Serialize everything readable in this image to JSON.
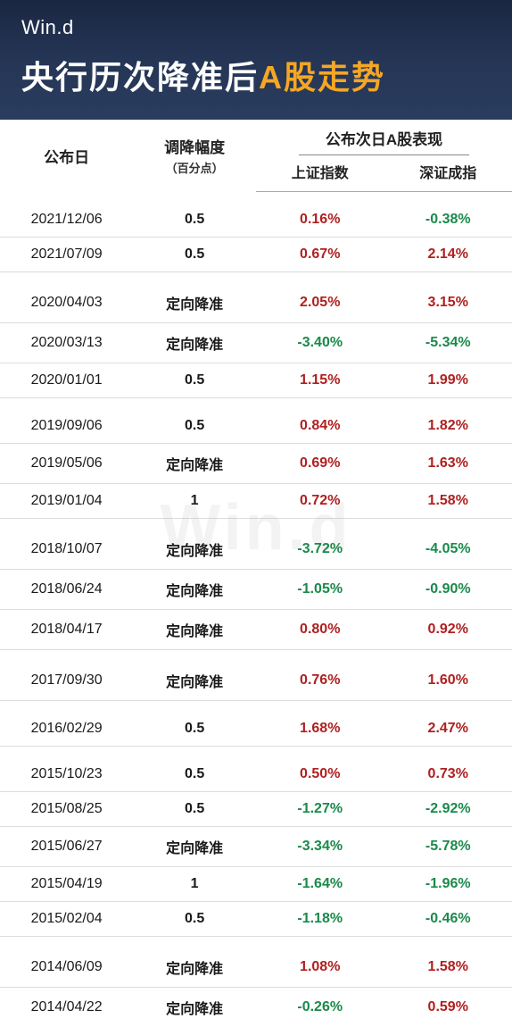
{
  "brand": "Win.d",
  "title_pre": "央行历次降准后",
  "title_accent": "A股走势",
  "watermark": "Win.d",
  "columns": {
    "date": "公布日",
    "amplitude_main": "调降幅度",
    "amplitude_sub": "（百分点）",
    "perf_group": "公布次日A股表现",
    "sh": "上证指数",
    "sz": "深证成指"
  },
  "colors": {
    "header_bg": "#1a2742",
    "accent": "#f5a623",
    "positive": "#b02020",
    "negative": "#1a8a4a",
    "body_bg": "#f5f0e8"
  },
  "rows": [
    {
      "date": "2021/12/06",
      "amp": "0.5",
      "sh": "0.16%",
      "sh_sign": 1,
      "sz": "-0.38%",
      "sz_sign": -1,
      "group_start": true
    },
    {
      "date": "2021/07/09",
      "amp": "0.5",
      "sh": "0.67%",
      "sh_sign": 1,
      "sz": "2.14%",
      "sz_sign": 1
    },
    {
      "date": "2020/04/03",
      "amp": "定向降准",
      "sh": "2.05%",
      "sh_sign": 1,
      "sz": "3.15%",
      "sz_sign": 1,
      "group_start": true
    },
    {
      "date": "2020/03/13",
      "amp": "定向降准",
      "sh": "-3.40%",
      "sh_sign": -1,
      "sz": "-5.34%",
      "sz_sign": -1
    },
    {
      "date": "2020/01/01",
      "amp": "0.5",
      "sh": "1.15%",
      "sh_sign": 1,
      "sz": "1.99%",
      "sz_sign": 1
    },
    {
      "date": "2019/09/06",
      "amp": "0.5",
      "sh": "0.84%",
      "sh_sign": 1,
      "sz": "1.82%",
      "sz_sign": 1,
      "group_start": true
    },
    {
      "date": "2019/05/06",
      "amp": "定向降准",
      "sh": "0.69%",
      "sh_sign": 1,
      "sz": "1.63%",
      "sz_sign": 1
    },
    {
      "date": "2019/01/04",
      "amp": "1",
      "sh": "0.72%",
      "sh_sign": 1,
      "sz": "1.58%",
      "sz_sign": 1
    },
    {
      "date": "2018/10/07",
      "amp": "定向降准",
      "sh": "-3.72%",
      "sh_sign": -1,
      "sz": "-4.05%",
      "sz_sign": -1,
      "group_start": true
    },
    {
      "date": "2018/06/24",
      "amp": "定向降准",
      "sh": "-1.05%",
      "sh_sign": -1,
      "sz": "-0.90%",
      "sz_sign": -1
    },
    {
      "date": "2018/04/17",
      "amp": "定向降准",
      "sh": "0.80%",
      "sh_sign": 1,
      "sz": "0.92%",
      "sz_sign": 1
    },
    {
      "date": "2017/09/30",
      "amp": "定向降准",
      "sh": "0.76%",
      "sh_sign": 1,
      "sz": "1.60%",
      "sz_sign": 1,
      "group_start": true
    },
    {
      "date": "2016/02/29",
      "amp": "0.5",
      "sh": "1.68%",
      "sh_sign": 1,
      "sz": "2.47%",
      "sz_sign": 1,
      "group_start": true
    },
    {
      "date": "2015/10/23",
      "amp": "0.5",
      "sh": "0.50%",
      "sh_sign": 1,
      "sz": "0.73%",
      "sz_sign": 1,
      "group_start": true
    },
    {
      "date": "2015/08/25",
      "amp": "0.5",
      "sh": "-1.27%",
      "sh_sign": -1,
      "sz": "-2.92%",
      "sz_sign": -1
    },
    {
      "date": "2015/06/27",
      "amp": "定向降准",
      "sh": "-3.34%",
      "sh_sign": -1,
      "sz": "-5.78%",
      "sz_sign": -1
    },
    {
      "date": "2015/04/19",
      "amp": "1",
      "sh": "-1.64%",
      "sh_sign": -1,
      "sz": "-1.96%",
      "sz_sign": -1
    },
    {
      "date": "2015/02/04",
      "amp": "0.5",
      "sh": "-1.18%",
      "sh_sign": -1,
      "sz": "-0.46%",
      "sz_sign": -1
    },
    {
      "date": "2014/06/09",
      "amp": "定向降准",
      "sh": "1.08%",
      "sh_sign": 1,
      "sz": "1.58%",
      "sz_sign": 1,
      "group_start": true
    },
    {
      "date": "2014/04/22",
      "amp": "定向降准",
      "sh": "-0.26%",
      "sh_sign": -1,
      "sz": "0.59%",
      "sz_sign": 1
    }
  ]
}
